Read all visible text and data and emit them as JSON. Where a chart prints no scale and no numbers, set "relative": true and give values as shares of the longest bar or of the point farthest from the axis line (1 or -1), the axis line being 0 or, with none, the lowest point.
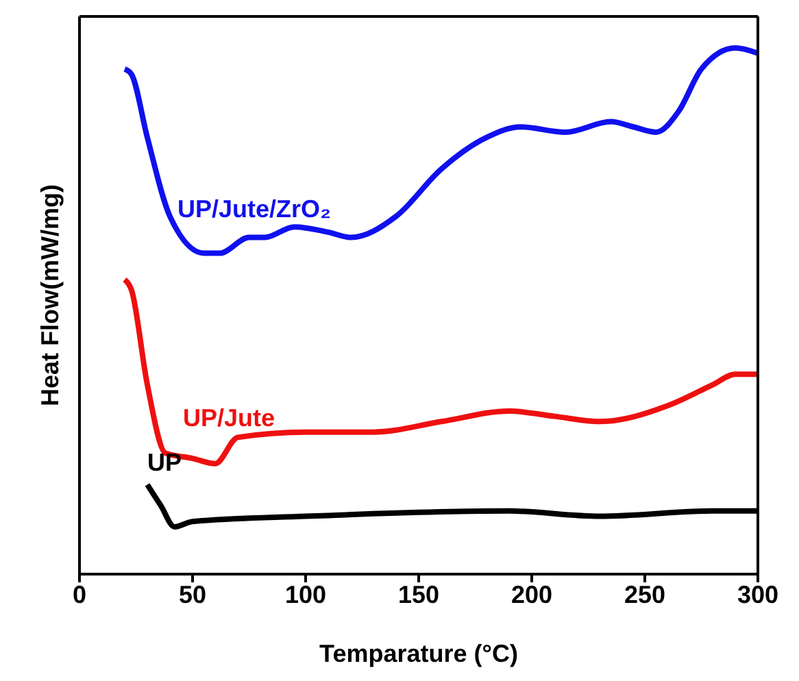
{
  "chart_data": {
    "type": "line",
    "xlabel": "Temparature (°C)",
    "ylabel": "Heat Flow(mW/mg)",
    "relative": true,
    "xlim": [
      0,
      300
    ],
    "xticks": [
      0,
      50,
      100,
      150,
      200,
      250,
      300
    ],
    "tick_labels": "x",
    "grid": false,
    "legend": false,
    "marker": "none",
    "line_style": "solid",
    "series": [
      {
        "name": "UP/Jute/ZrO₂",
        "color": "#1010ee",
        "x": [
          20,
          23,
          30,
          40,
          55,
          62,
          75,
          82,
          95,
          110,
          120,
          140,
          160,
          180,
          195,
          215,
          235,
          245,
          255,
          265,
          275,
          290,
          300
        ],
        "values": [
          0.96,
          0.95,
          0.83,
          0.68,
          0.61,
          0.61,
          0.64,
          0.64,
          0.66,
          0.65,
          0.64,
          0.68,
          0.77,
          0.83,
          0.85,
          0.84,
          0.86,
          0.85,
          0.84,
          0.88,
          0.96,
          1,
          0.99
        ]
      },
      {
        "name": "UP/Jute",
        "color": "#ee1010",
        "x": [
          20,
          23,
          30,
          38,
          50,
          60,
          70,
          100,
          130,
          160,
          190,
          210,
          230,
          260,
          280,
          290,
          300
        ],
        "values": [
          0.56,
          0.54,
          0.36,
          0.23,
          0.22,
          0.21,
          0.26,
          0.27,
          0.27,
          0.29,
          0.31,
          0.3,
          0.29,
          0.32,
          0.36,
          0.38,
          0.38
        ]
      },
      {
        "name": "UP",
        "color": "#000000",
        "x": [
          30,
          36,
          42,
          50,
          100,
          190,
          230,
          280,
          300
        ],
        "values": [
          0.17,
          0.13,
          0.09,
          0.1,
          0.11,
          0.12,
          0.11,
          0.12,
          0.12
        ]
      }
    ]
  }
}
